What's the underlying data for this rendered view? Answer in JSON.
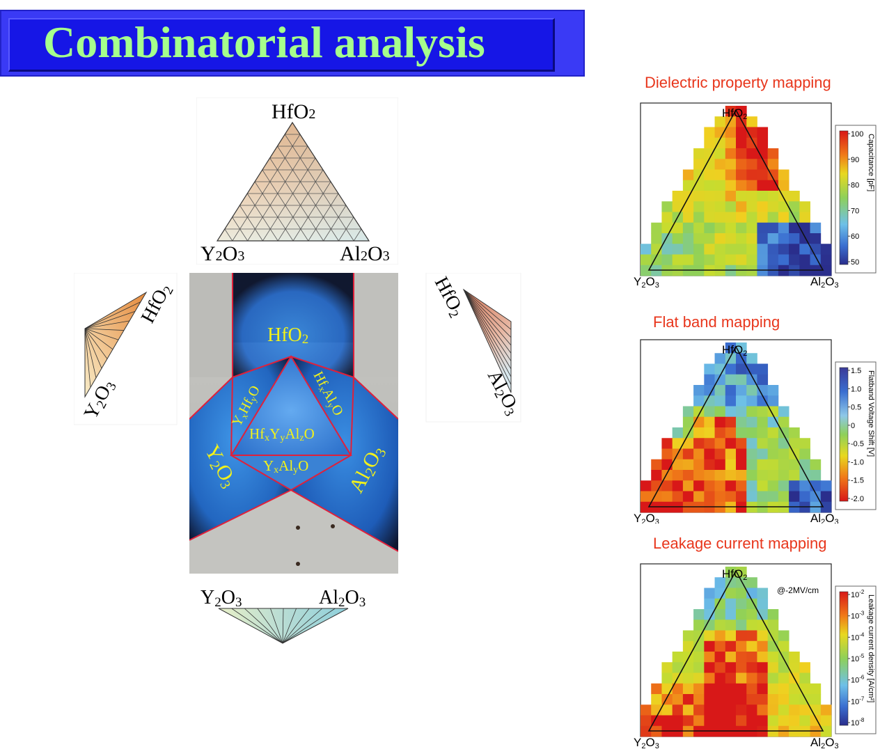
{
  "title": "Combinatorial analysis",
  "ternary": {
    "top": [
      "HfO",
      "2"
    ],
    "left": [
      "Y",
      "2",
      "O",
      "3"
    ],
    "right": [
      "Al",
      "2",
      "O",
      "3"
    ]
  },
  "wafer_labels": {
    "hfo2": [
      "HfO",
      "2"
    ],
    "y2o3": [
      "Y",
      "2",
      "O",
      "3"
    ],
    "al2o3": [
      "Al",
      "2",
      "O",
      "3"
    ],
    "yxhfyo": [
      "Y",
      "x",
      "Hf",
      "y",
      "O"
    ],
    "hfxalyo": [
      "Hf",
      "x",
      "Al",
      "y",
      "O"
    ],
    "hfxyyalzo": [
      "Hf",
      "x",
      "Y",
      "y",
      "Al",
      "z",
      "O"
    ],
    "yxalyo": [
      "Y",
      "x",
      "Al",
      "y",
      "O"
    ]
  },
  "maps": [
    {
      "title": "Dielectric property mapping",
      "colorbar_label": "Capacitance [pF]",
      "ticks": [
        "100",
        "90",
        "80",
        "70",
        "60",
        "50"
      ],
      "note": ""
    },
    {
      "title": "Flat band mapping",
      "colorbar_label": "Flatband Voltage Shift [V]",
      "ticks": [
        "1.5",
        "1.0",
        "0.5",
        "0",
        "-0.5",
        "-1.0",
        "-1.5",
        "-2.0"
      ],
      "note": ""
    },
    {
      "title": "Leakage current mapping",
      "colorbar_label": "Leakage current density [A/cm²]",
      "ticks": [
        "10",
        "10",
        "10",
        "10",
        "10",
        "10",
        "10"
      ],
      "tick_exponents": [
        "-2",
        "-3",
        "-4",
        "-5",
        "-6",
        "-7",
        "-8"
      ],
      "note": "@-2MV/cm"
    }
  ],
  "colors": {
    "title_bg": "#1616e6",
    "title_text": "#a6ff8c",
    "map_title": "#e8361c",
    "wafer_label": "#f2f21a",
    "wafer_border": "#e0203a"
  }
}
